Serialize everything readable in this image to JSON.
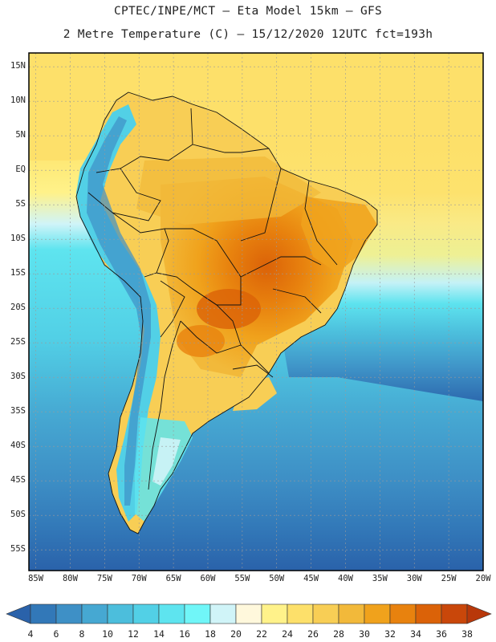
{
  "title": {
    "line1": "CPTEC/INPE/MCT —  Eta Model 15km — GFS",
    "line2": "2 Metre Temperature (C) — 15/12/2020 12UTC fct=193h"
  },
  "map": {
    "lat_labels": [
      "15N",
      "10N",
      "5N",
      "EQ",
      "5S",
      "10S",
      "15S",
      "20S",
      "25S",
      "30S",
      "35S",
      "40S",
      "45S",
      "50S",
      "55S"
    ],
    "lon_labels": [
      "85W",
      "80W",
      "75W",
      "70W",
      "65W",
      "60W",
      "55W",
      "50W",
      "45W",
      "40W",
      "35W",
      "30W",
      "25W",
      "20W"
    ],
    "lat_values": [
      15,
      10,
      5,
      0,
      -5,
      -10,
      -15,
      -20,
      -25,
      -30,
      -35,
      -40,
      -45,
      -50,
      -55
    ],
    "lon_values": [
      -85,
      -80,
      -75,
      -70,
      -65,
      -60,
      -55,
      -50,
      -45,
      -40,
      -35,
      -30,
      -25,
      -20
    ],
    "extent": {
      "lon_min": -86,
      "lon_max": -20,
      "lat_min": -58,
      "lat_max": 17
    }
  },
  "colorbar": {
    "labels": [
      "4",
      "6",
      "8",
      "10",
      "12",
      "14",
      "16",
      "18",
      "20",
      "22",
      "24",
      "26",
      "28",
      "30",
      "32",
      "34",
      "36",
      "38"
    ],
    "colors": [
      "#2a62aa",
      "#3278b8",
      "#3e90c6",
      "#46a8d2",
      "#4cbedc",
      "#52d0e6",
      "#5ee4ef",
      "#70f6f8",
      "#d0f4f8",
      "#fff8dc",
      "#fff28a",
      "#fde06a",
      "#f8ce55",
      "#f2b93a",
      "#f0a21c",
      "#e8820e",
      "#db6208",
      "#c9470a",
      "#b8380a"
    ]
  }
}
